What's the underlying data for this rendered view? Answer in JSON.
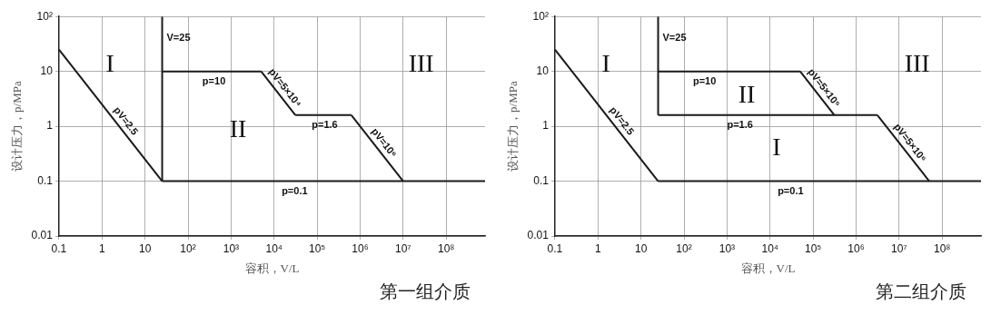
{
  "chart_data": [
    {
      "type": "line",
      "xlabel": "容积，V/L",
      "ylabel": "设计压力，p/MPa",
      "log": "xy",
      "grid": true,
      "legend": false,
      "xlim": [
        0.1,
        800000000
      ],
      "ylim": [
        0.01,
        100
      ],
      "xticks": [
        0.1,
        1,
        10,
        {
          "value": 100,
          "label": "10²"
        },
        {
          "value": 1000,
          "label": "10³"
        },
        {
          "value": 10000,
          "label": "10⁴"
        },
        {
          "value": 100000,
          "label": "10⁵"
        },
        {
          "value": 1000000,
          "label": "10⁶"
        },
        {
          "value": 10000000,
          "label": "10⁷"
        },
        {
          "value": 100000000,
          "label": "10⁸"
        }
      ],
      "yticks": [
        0.01,
        0.1,
        1,
        10,
        {
          "value": 100,
          "label": "10²"
        }
      ],
      "series": [
        {
          "color": "#1a1a1a",
          "x": [
            0.1,
            25
          ],
          "values": [
            25,
            0.1
          ]
        },
        {
          "color": "#1a1a1a",
          "x": [
            25,
            25
          ],
          "values": [
            0.1,
            100
          ]
        },
        {
          "color": "#1a1a1a",
          "x": [
            25,
            5000
          ],
          "values": [
            10,
            10
          ]
        },
        {
          "color": "#1a1a1a",
          "x": [
            5000,
            31250
          ],
          "values": [
            10,
            1.6
          ]
        },
        {
          "color": "#1a1a1a",
          "x": [
            31250,
            625000
          ],
          "values": [
            1.6,
            1.6
          ]
        },
        {
          "color": "#1a1a1a",
          "x": [
            625000,
            10000000
          ],
          "values": [
            1.6,
            0.1
          ]
        },
        {
          "color": "#1a1a1a",
          "x": [
            25,
            800000000
          ],
          "values": [
            0.1,
            0.1
          ]
        }
      ],
      "annotations": [
        {
          "text": "V=25",
          "x": 25,
          "y": 40
        },
        {
          "text": "p=10",
          "x": 400,
          "y": 10
        },
        {
          "text": "pV=5×10⁴",
          "x": 12500,
          "y": 4
        },
        {
          "text": "p=1.6",
          "x": 150000,
          "y": 1.6
        },
        {
          "text": "pV=10⁶",
          "x": 2500000,
          "y": 0.4
        },
        {
          "text": "p=0.1",
          "x": 30000,
          "y": 0.1
        },
        {
          "text": "pV=2.5",
          "x": 2.5,
          "y": 1
        },
        "I",
        "II",
        "III",
        "第一组介质"
      ]
    },
    {
      "type": "line",
      "xlabel": "容积，V/L",
      "ylabel": "设计压力，p/MPa",
      "log": "xy",
      "grid": true,
      "legend": false,
      "xlim": [
        0.1,
        800000000
      ],
      "ylim": [
        0.01,
        100
      ],
      "xticks": [
        0.1,
        1,
        10,
        {
          "value": 100,
          "label": "10²"
        },
        {
          "value": 1000,
          "label": "10³"
        },
        {
          "value": 10000,
          "label": "10⁴"
        },
        {
          "value": 100000,
          "label": "10⁵"
        },
        {
          "value": 1000000,
          "label": "10⁶"
        },
        {
          "value": 10000000,
          "label": "10⁷"
        },
        {
          "value": 100000000,
          "label": "10⁸"
        }
      ],
      "yticks": [
        0.01,
        0.1,
        1,
        10,
        {
          "value": 100,
          "label": "10²"
        }
      ],
      "series": [
        {
          "color": "#1a1a1a",
          "x": [
            0.1,
            25
          ],
          "values": [
            25,
            0.1
          ]
        },
        {
          "color": "#1a1a1a",
          "x": [
            25,
            25
          ],
          "values": [
            1.6,
            100
          ]
        },
        {
          "color": "#1a1a1a",
          "x": [
            25,
            50000
          ],
          "values": [
            10,
            10
          ]
        },
        {
          "color": "#1a1a1a",
          "x": [
            50000,
            312500
          ],
          "values": [
            10,
            1.6
          ]
        },
        {
          "color": "#1a1a1a",
          "x": [
            25,
            3125000
          ],
          "values": [
            1.6,
            1.6
          ]
        },
        {
          "color": "#1a1a1a",
          "x": [
            3125000,
            50000000
          ],
          "values": [
            1.6,
            0.1
          ]
        },
        {
          "color": "#1a1a1a",
          "x": [
            25,
            800000000
          ],
          "values": [
            0.1,
            0.1
          ]
        }
      ],
      "annotations": [
        {
          "text": "V=25",
          "x": 25,
          "y": 40
        },
        {
          "text": "p=10",
          "x": 300,
          "y": 10
        },
        {
          "text": "pV=5×10⁵",
          "x": 125000,
          "y": 4
        },
        {
          "text": "p=1.6",
          "x": 2000,
          "y": 1.6
        },
        {
          "text": "pV=5×10⁶",
          "x": 12500000,
          "y": 0.4
        },
        {
          "text": "p=0.1",
          "x": 30000,
          "y": 0.1
        },
        {
          "text": "pV=2.5",
          "x": 2.5,
          "y": 1
        },
        "I",
        "II",
        "I",
        "III",
        "第二组介质"
      ]
    }
  ]
}
